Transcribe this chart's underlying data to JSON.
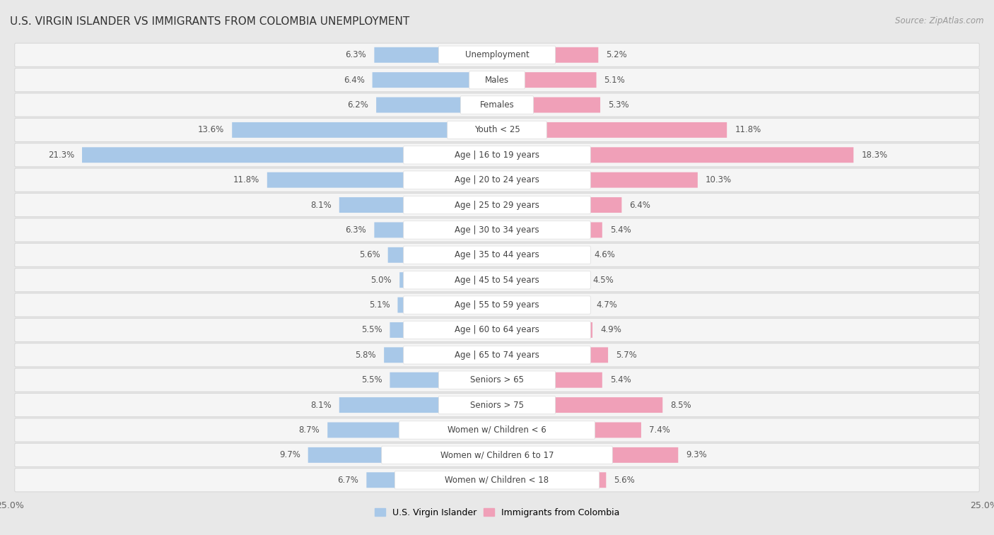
{
  "title": "U.S. VIRGIN ISLANDER VS IMMIGRANTS FROM COLOMBIA UNEMPLOYMENT",
  "source": "Source: ZipAtlas.com",
  "categories": [
    "Unemployment",
    "Males",
    "Females",
    "Youth < 25",
    "Age | 16 to 19 years",
    "Age | 20 to 24 years",
    "Age | 25 to 29 years",
    "Age | 30 to 34 years",
    "Age | 35 to 44 years",
    "Age | 45 to 54 years",
    "Age | 55 to 59 years",
    "Age | 60 to 64 years",
    "Age | 65 to 74 years",
    "Seniors > 65",
    "Seniors > 75",
    "Women w/ Children < 6",
    "Women w/ Children 6 to 17",
    "Women w/ Children < 18"
  ],
  "left_values": [
    6.3,
    6.4,
    6.2,
    13.6,
    21.3,
    11.8,
    8.1,
    6.3,
    5.6,
    5.0,
    5.1,
    5.5,
    5.8,
    5.5,
    8.1,
    8.7,
    9.7,
    6.7
  ],
  "right_values": [
    5.2,
    5.1,
    5.3,
    11.8,
    18.3,
    10.3,
    6.4,
    5.4,
    4.6,
    4.5,
    4.7,
    4.9,
    5.7,
    5.4,
    8.5,
    7.4,
    9.3,
    5.6
  ],
  "left_color": "#a8c8e8",
  "right_color": "#f0a0b8",
  "axis_max": 25.0,
  "bg_color": "#e8e8e8",
  "row_bg_color": "#f5f5f5",
  "row_border_color": "#d8d8d8",
  "title_fontsize": 11,
  "source_fontsize": 8.5,
  "label_fontsize": 8.5,
  "value_fontsize": 8.5,
  "legend_label_left": "U.S. Virgin Islander",
  "legend_label_right": "Immigrants from Colombia"
}
